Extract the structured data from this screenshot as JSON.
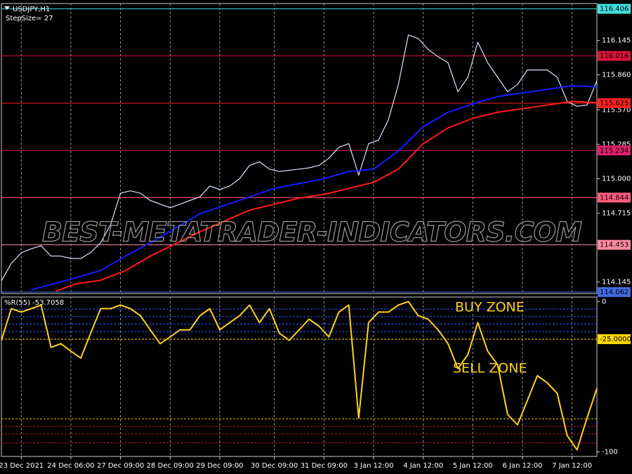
{
  "chart_data": [
    {
      "type": "line",
      "title": "USDJPY,H1",
      "subtitle": "StepSize= 27",
      "watermark": "BEST-METATRADER-INDICATORS.COM",
      "xlim": [
        0,
        120
      ],
      "ylim": [
        114.05,
        116.45
      ],
      "yticks": [
        116.145,
        {
          "value": 115.86,
          "label": "115.860"
        },
        {
          "value": 115.57,
          "label": "115.570"
        },
        115.285,
        {
          "value": 115,
          "label": "115.000"
        },
        114.715,
        114.145
      ],
      "level_labels": true,
      "levels": [
        {
          "value": 116.406,
          "color": "#40e0e0"
        },
        {
          "value": 116.016,
          "color": "#dc143c"
        },
        {
          "value": 115.625,
          "color": "#ff2020"
        },
        {
          "value": 115.234,
          "color": "#e0206a"
        },
        {
          "value": 114.844,
          "color": "#ff5c7c"
        },
        {
          "value": 114.453,
          "color": "#ff8aa0"
        },
        {
          "value": 114.062,
          "color": "#4169e1"
        }
      ],
      "series": [
        {
          "color": "#d8e4ff",
          "x": [
            0,
            2,
            4,
            6,
            8,
            10,
            12,
            14,
            16,
            18,
            20,
            22,
            24,
            26,
            28,
            30,
            32,
            34,
            36,
            38,
            40,
            42,
            44,
            46,
            48,
            50,
            52,
            54,
            56,
            58,
            60,
            62,
            64,
            66,
            68,
            70,
            72,
            74,
            76,
            78,
            80,
            82,
            84,
            86,
            88,
            90,
            92,
            94,
            96,
            98,
            100,
            102,
            104,
            106,
            108,
            110,
            112,
            114,
            116,
            118,
            120
          ],
          "values": [
            114.155,
            114.3,
            114.387,
            114.42,
            114.445,
            114.36,
            114.36,
            114.34,
            114.34,
            114.39,
            114.47,
            114.62,
            114.88,
            114.9,
            114.88,
            114.82,
            114.79,
            114.76,
            114.79,
            114.82,
            114.85,
            114.94,
            114.91,
            114.94,
            115.0,
            115.11,
            115.14,
            115.08,
            115.06,
            115.07,
            115.08,
            115.09,
            115.11,
            115.17,
            115.26,
            115.29,
            115.03,
            115.29,
            115.32,
            115.49,
            115.78,
            116.19,
            116.16,
            116.07,
            116.01,
            115.96,
            115.72,
            115.84,
            116.13,
            115.96,
            115.84,
            115.72,
            115.78,
            115.9,
            115.9,
            115.9,
            115.84,
            115.64,
            115.6,
            115.61,
            115.81
          ]
        },
        {
          "color": "#1a1aff",
          "x": [
            6,
            15,
            20,
            25,
            30,
            35,
            40,
            45,
            50,
            55,
            60,
            65,
            70,
            75,
            80,
            85,
            90,
            95,
            100,
            105,
            110,
            115,
            120
          ],
          "values": [
            114.08,
            114.18,
            114.24,
            114.36,
            114.47,
            114.59,
            114.71,
            114.78,
            114.85,
            114.92,
            114.96,
            115.0,
            115.06,
            115.08,
            115.23,
            115.43,
            115.55,
            115.62,
            115.68,
            115.71,
            115.74,
            115.77,
            115.76
          ]
        },
        {
          "color": "#ff1a1a",
          "x": [
            11,
            15,
            20,
            25,
            30,
            35,
            40,
            45,
            50,
            55,
            60,
            65,
            70,
            75,
            80,
            85,
            90,
            95,
            100,
            105,
            110,
            115,
            120
          ],
          "values": [
            114.07,
            114.13,
            114.16,
            114.24,
            114.36,
            114.46,
            114.56,
            114.65,
            114.74,
            114.79,
            114.84,
            114.87,
            114.92,
            114.97,
            115.08,
            115.29,
            115.42,
            115.5,
            115.55,
            115.58,
            115.61,
            115.64,
            115.63
          ]
        }
      ]
    },
    {
      "type": "line",
      "title": "%R(55) -53.7058",
      "annotations": [
        "BUY ZONE",
        "SELL ZONE"
      ],
      "xlim": [
        0,
        120
      ],
      "ylim": [
        -103,
        3
      ],
      "xticks": [
        {
          "value": 4,
          "label": "23 Dec 2021"
        },
        {
          "value": 14,
          "label": "24 Dec 06:00"
        },
        {
          "value": 24,
          "label": "27 Dec 09:00"
        },
        {
          "value": 34,
          "label": "28 Dec 09:00"
        },
        {
          "value": 44,
          "label": "29 Dec 09:00"
        },
        {
          "value": 55,
          "label": "30 Dec 09:00"
        },
        {
          "value": 65,
          "label": "31 Dec 09:00"
        },
        {
          "value": 75,
          "label": "3 Jan 12:00"
        },
        {
          "value": 85,
          "label": "4 Jan 12:00"
        },
        {
          "value": 95,
          "label": "5 Jan 12:00"
        },
        {
          "value": 105,
          "label": "6 Jan 12:00"
        },
        {
          "value": 115,
          "label": "7 Jan 12:00"
        }
      ],
      "yticks": [
        0,
        -100
      ],
      "level_labels": false,
      "levels": [
        {
          "value": -5,
          "color": "#3050ff"
        },
        {
          "value": -10,
          "color": "#3050ff"
        },
        {
          "value": -15,
          "color": "#3050ff"
        },
        {
          "value": -20,
          "color": "#3050ff"
        },
        {
          "value": -25,
          "label": "-25.0000",
          "color": "#ffd700"
        },
        {
          "value": -78,
          "color": "#d4b000"
        },
        {
          "value": -83,
          "color": "#c02020"
        },
        {
          "value": -88,
          "color": "#c02020"
        },
        {
          "value": -94,
          "color": "#c02020"
        }
      ],
      "series": [
        {
          "color": "#ffd21e",
          "x": [
            0,
            2,
            4,
            6,
            8,
            10,
            12,
            14,
            16,
            18,
            20,
            22,
            24,
            26,
            28,
            30,
            32,
            34,
            36,
            38,
            40,
            42,
            44,
            46,
            48,
            50,
            52,
            54,
            56,
            58,
            60,
            62,
            64,
            66,
            68,
            70,
            72,
            74,
            76,
            78,
            80,
            82,
            84,
            86,
            88,
            90,
            92,
            94,
            96,
            98,
            100,
            102,
            104,
            106,
            108,
            110,
            112,
            114,
            116,
            118,
            120
          ],
          "values": [
            -25.8,
            -4.7,
            -7,
            -4.7,
            -2.3,
            -30.5,
            -28,
            -33,
            -37.6,
            -21,
            -4.7,
            -4.7,
            -2.3,
            -4.7,
            -9.4,
            -18.8,
            -28,
            -23.5,
            -18.8,
            -18.8,
            -9.4,
            -4.7,
            -18.8,
            -14,
            -9.4,
            -2.3,
            -14,
            -4.7,
            -21,
            -25.8,
            -18.8,
            -11.7,
            -16.4,
            -23.5,
            -7,
            -2.3,
            -77.5,
            -14,
            -7,
            -7,
            -2.3,
            0,
            -9.4,
            -11.7,
            -18.8,
            -28,
            -44.6,
            -35.2,
            -14,
            -33,
            -42,
            -75,
            -82,
            -65.7,
            -49.3,
            -54,
            -61,
            -89,
            -98.6,
            -77.5,
            -57.7
          ]
        }
      ]
    }
  ]
}
